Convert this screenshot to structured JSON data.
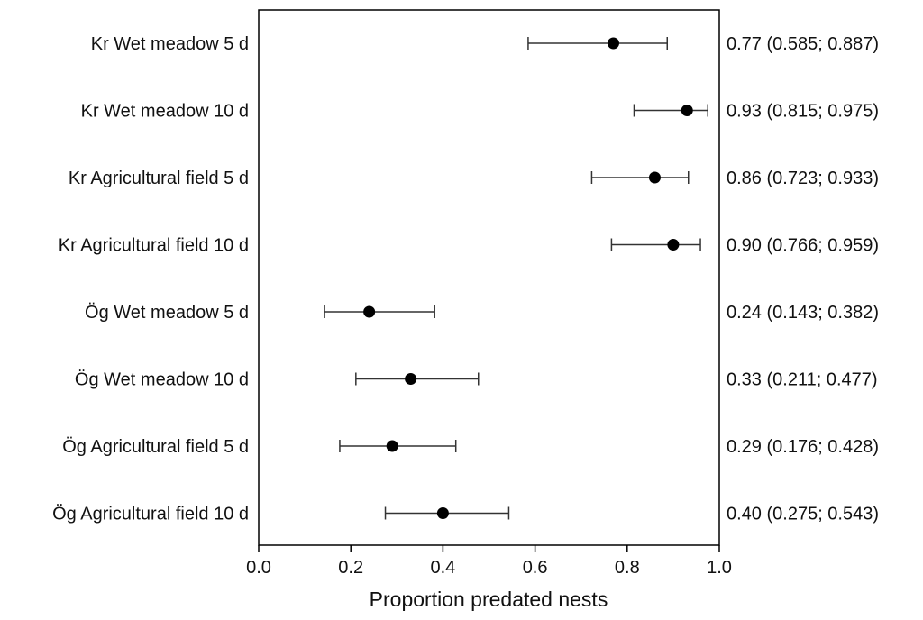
{
  "chart_data": {
    "type": "scatter",
    "xlabel": "Proportion predated nests",
    "xlim": [
      0.0,
      1.0
    ],
    "xticks": [
      "0.0",
      "0.2",
      "0.4",
      "0.6",
      "0.8",
      "1.0"
    ],
    "grid": false,
    "categories": [
      "Kr Wet meadow 5 d",
      "Kr Wet meadow 10 d",
      "Kr Agricultural field 5 d",
      "Kr Agricultural field 10 d",
      "Ög Wet meadow 5 d",
      "Ög Wet meadow 10 d",
      "Ög Agricultural field 5 d",
      "Ög Agricultural field 10 d"
    ],
    "values": [
      0.77,
      0.93,
      0.86,
      0.9,
      0.24,
      0.33,
      0.29,
      0.4
    ],
    "ci_lower": [
      0.585,
      0.815,
      0.723,
      0.766,
      0.143,
      0.211,
      0.176,
      0.275
    ],
    "ci_upper": [
      0.887,
      0.975,
      0.933,
      0.959,
      0.382,
      0.477,
      0.428,
      0.543
    ],
    "value_labels": [
      "0.77 (0.585; 0.887)",
      "0.93 (0.815; 0.975)",
      "0.86 (0.723; 0.933)",
      "0.90 (0.766; 0.959)",
      "0.24 (0.143; 0.382)",
      "0.33 (0.211; 0.477)",
      "0.29 (0.176; 0.428)",
      "0.40 (0.275; 0.543)"
    ],
    "colors": {
      "marker": "#000000",
      "errorbar": "#333333",
      "axis": "#000000"
    }
  }
}
